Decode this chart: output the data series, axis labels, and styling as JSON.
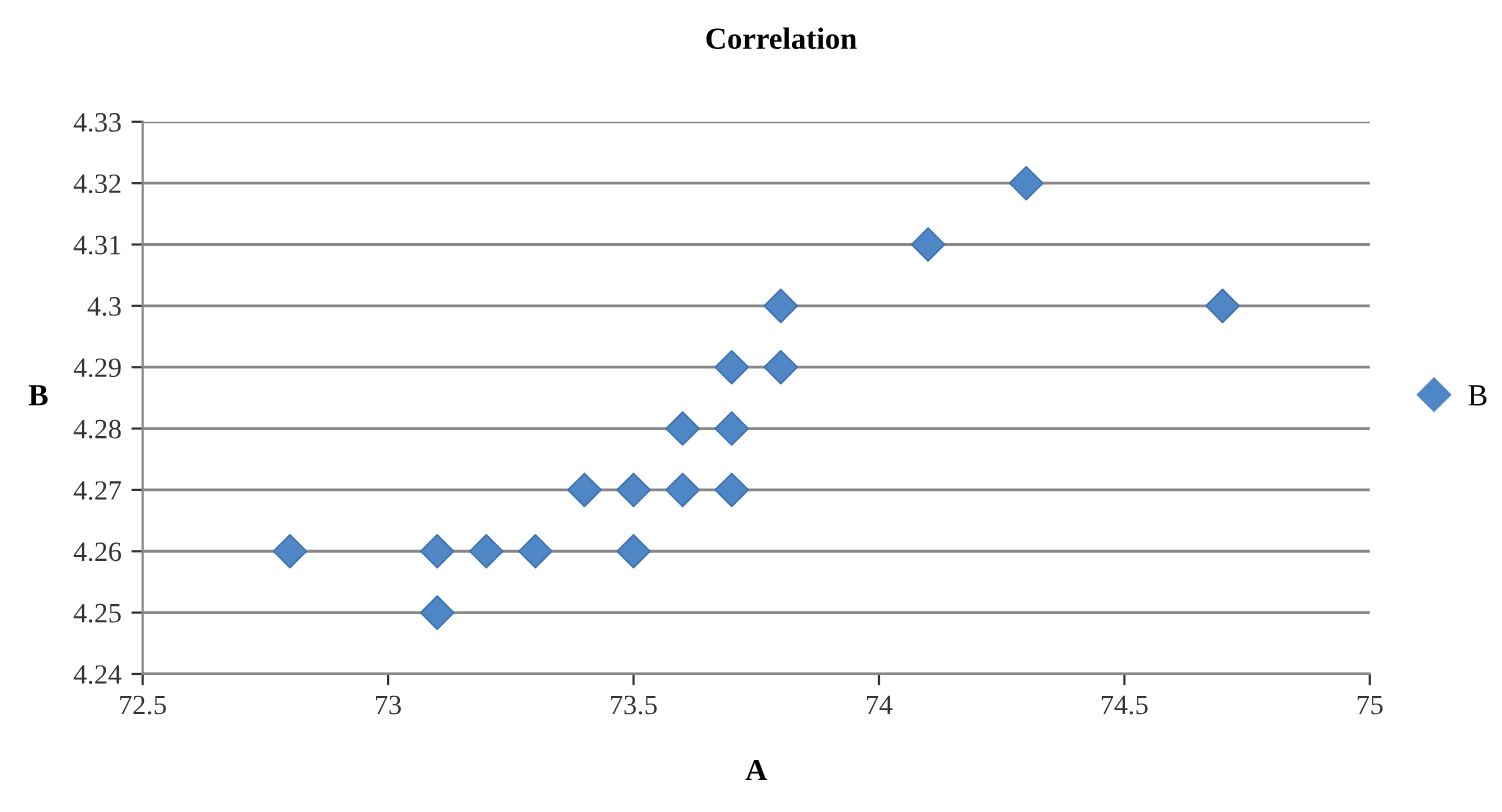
{
  "chart_data": {
    "type": "scatter",
    "title": "Correlation",
    "xlabel": "A",
    "ylabel": "B",
    "xlim": [
      72.5,
      75
    ],
    "xticks": [
      72.5,
      73,
      73.5,
      74,
      74.5,
      75
    ],
    "ylim": [
      4.24,
      4.33
    ],
    "yticks": [
      4.24,
      4.25,
      4.26,
      4.27,
      4.28,
      4.29,
      4.3,
      4.31,
      4.32,
      4.33
    ],
    "grid": "y",
    "legend": "right",
    "marker": "diamond",
    "series": [
      {
        "name": "B",
        "color": "#4f87c6",
        "x": [
          72.8,
          73.1,
          73.1,
          73.2,
          73.3,
          73.4,
          73.5,
          73.5,
          73.6,
          73.6,
          73.7,
          73.7,
          73.7,
          73.8,
          73.8,
          74.1,
          74.3,
          74.7
        ],
        "values": [
          4.26,
          4.26,
          4.25,
          4.26,
          4.26,
          4.27,
          4.27,
          4.26,
          4.28,
          4.27,
          4.29,
          4.28,
          4.27,
          4.3,
          4.29,
          4.31,
          4.32,
          4.3
        ]
      }
    ]
  }
}
